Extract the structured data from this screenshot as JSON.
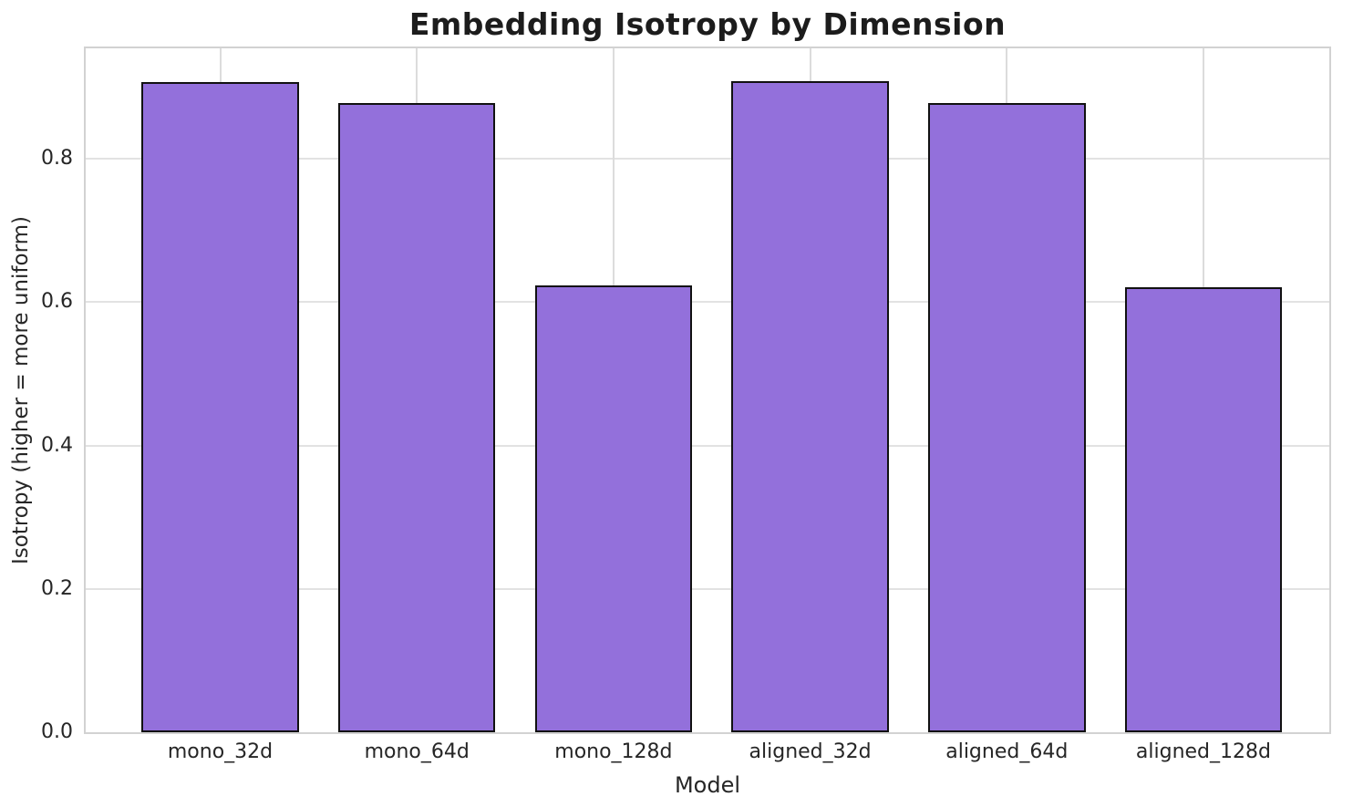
{
  "chart_data": {
    "type": "bar",
    "title": "Embedding Isotropy by Dimension",
    "xlabel": "Model",
    "ylabel": "Isotropy (higher = more uniform)",
    "categories": [
      "mono_32d",
      "mono_64d",
      "mono_128d",
      "aligned_32d",
      "aligned_64d",
      "aligned_128d"
    ],
    "values": [
      0.907,
      0.878,
      0.623,
      0.908,
      0.878,
      0.621
    ],
    "yticks": [
      0.0,
      0.2,
      0.4,
      0.6,
      0.8
    ],
    "ytick_labels": [
      "0.0",
      "0.2",
      "0.4",
      "0.6",
      "0.8"
    ],
    "ylim": [
      0,
      0.954
    ],
    "xlim": [
      -0.684,
      5.64
    ],
    "bar_width_units": 0.8,
    "grid": true,
    "legend": "none",
    "colors": {
      "bar_fill": "#9370DB",
      "bar_edge": "#111111",
      "grid_h": "#e2e2e2",
      "grid_v": "#dcdcdc",
      "spine": "#d2d2d2",
      "text": "#262626",
      "title": "#1c1c1c",
      "background": "#ffffff"
    }
  }
}
